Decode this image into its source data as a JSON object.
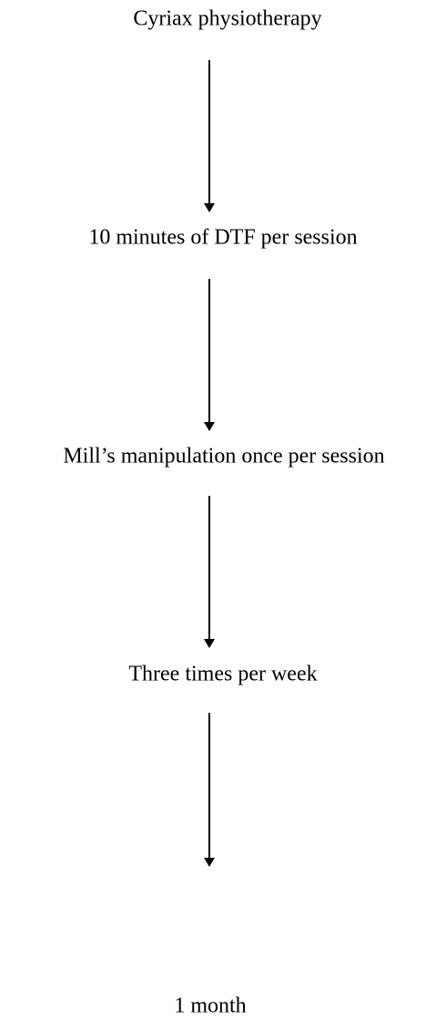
{
  "nodes": [
    {
      "label": "Cyriax physiotherapy"
    },
    {
      "label": "10 minutes of DTF per session"
    },
    {
      "label": "Mill’s manipulation once per session"
    },
    {
      "label": "Three times per week"
    },
    {
      "label": "1 month"
    }
  ]
}
